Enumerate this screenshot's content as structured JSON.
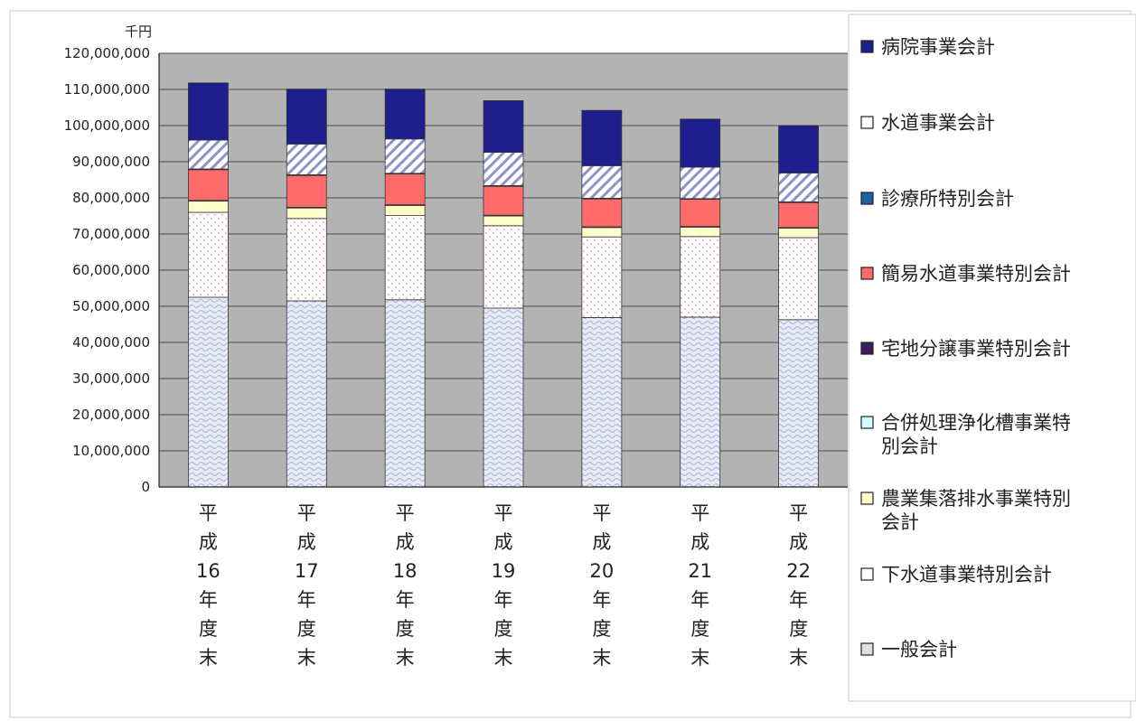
{
  "chart_data": {
    "type": "bar",
    "stacked": true,
    "unit": "千円",
    "ylim": [
      0,
      120000000
    ],
    "ytick_step": 10000000,
    "ytick_labels": [
      "0",
      "10,000,000",
      "20,000,000",
      "30,000,000",
      "40,000,000",
      "50,000,000",
      "60,000,000",
      "70,000,000",
      "80,000,000",
      "90,000,000",
      "100,000,000",
      "110,000,000",
      "120,000,000"
    ],
    "categories": [
      {
        "lines": [
          "平",
          "成",
          "16",
          "年",
          "度",
          "末"
        ]
      },
      {
        "lines": [
          "平",
          "成",
          "17",
          "年",
          "度",
          "末"
        ]
      },
      {
        "lines": [
          "平",
          "成",
          "18",
          "年",
          "度",
          "末"
        ]
      },
      {
        "lines": [
          "平",
          "成",
          "19",
          "年",
          "度",
          "末"
        ]
      },
      {
        "lines": [
          "平",
          "成",
          "20",
          "年",
          "度",
          "末"
        ]
      },
      {
        "lines": [
          "平",
          "成",
          "21",
          "年",
          "度",
          "末"
        ]
      },
      {
        "lines": [
          "平",
          "成",
          "22",
          "年",
          "度",
          "末"
        ]
      }
    ],
    "grid": true,
    "legend_position": "right",
    "series": [
      {
        "name": "一般会計",
        "values": [
          52500000,
          51500000,
          51800000,
          49500000,
          46900000,
          47000000,
          46300000
        ],
        "color": "#dfe3f0",
        "pattern": "waves"
      },
      {
        "name": "下水道事業特別会計",
        "values": [
          23500000,
          22800000,
          23300000,
          22800000,
          22300000,
          22300000,
          22700000
        ],
        "color": "#ffffff",
        "pattern": "dots"
      },
      {
        "name": "農業集落排水事業特別会計",
        "values": [
          3100000,
          2900000,
          2800000,
          2700000,
          2600000,
          2600000,
          2600000
        ],
        "color": "#ffffcc",
        "pattern": "none"
      },
      {
        "name": "合併処理浄化槽事業特別会計",
        "values": [
          0,
          0,
          0,
          0,
          0,
          0,
          0
        ],
        "color": "#ccffff",
        "pattern": "none"
      },
      {
        "name": "宅地分譲事業特別会計",
        "values": [
          200000,
          200000,
          200000,
          200000,
          200000,
          200000,
          200000
        ],
        "color": "#3f1d5c",
        "pattern": "none"
      },
      {
        "name": "簡易水道事業特別会計",
        "values": [
          8500000,
          8800000,
          8500000,
          8000000,
          7700000,
          7500000,
          6900000
        ],
        "color": "#ff6b6b",
        "pattern": "none"
      },
      {
        "name": "診療所特別会計",
        "values": [
          200000,
          200000,
          200000,
          200000,
          200000,
          200000,
          200000
        ],
        "color": "#1f5fa6",
        "pattern": "none"
      },
      {
        "name": "水道事業会計",
        "values": [
          8000000,
          8500000,
          9500000,
          9200000,
          9000000,
          8700000,
          8000000
        ],
        "color": "#ffffff",
        "pattern": "diagonal"
      },
      {
        "name": "病院事業会計",
        "values": [
          15800000,
          15200000,
          13800000,
          14300000,
          15300000,
          13300000,
          13100000
        ],
        "color": "#1e1e8c",
        "pattern": "none"
      }
    ],
    "legend_order": [
      "病院事業会計",
      "水道事業会計",
      "診療所特別会計",
      "簡易水道事業特別会計",
      "宅地分譲事業特別会計",
      "合併処理浄化槽事業特別会計",
      "農業集落排水事業特別会計",
      "下水道事業特別会計",
      "一般会計"
    ],
    "legend_lines": [
      [
        "病院事業会計"
      ],
      [
        "水道事業会計"
      ],
      [
        "診療所特別会計"
      ],
      [
        "簡易水道事業特別会計"
      ],
      [
        "宅地分譲事業特別会計"
      ],
      [
        "合併処理浄化槽事業特",
        "別会計"
      ],
      [
        "農業集落排水事業特別",
        "会計"
      ],
      [
        "下水道事業特別会計"
      ],
      [
        "一般会計"
      ]
    ],
    "colors": {
      "plot_background": "#b3b3b3",
      "gridline": "#4d4d4d"
    }
  }
}
